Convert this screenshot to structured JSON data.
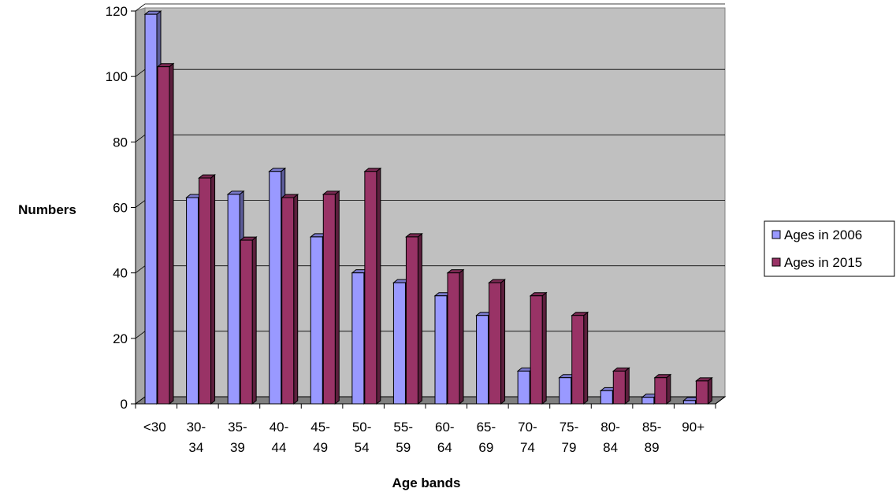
{
  "chart_data": {
    "type": "bar",
    "style": "3d-clustered-column",
    "categories": [
      [
        "<30"
      ],
      [
        "30-",
        "34"
      ],
      [
        "35-",
        "39"
      ],
      [
        "40-",
        "44"
      ],
      [
        "45-",
        "49"
      ],
      [
        "50-",
        "54"
      ],
      [
        "55-",
        "59"
      ],
      [
        "60-",
        "64"
      ],
      [
        "65-",
        "69"
      ],
      [
        "70-",
        "74"
      ],
      [
        "75-",
        "79"
      ],
      [
        "80-",
        "84"
      ],
      [
        "85-",
        "89"
      ],
      [
        "90+"
      ]
    ],
    "series": [
      {
        "name": "Ages in 2006",
        "color": "#9999ff",
        "values": [
          119,
          63,
          64,
          71,
          51,
          40,
          37,
          33,
          27,
          10,
          8,
          4,
          2,
          1
        ]
      },
      {
        "name": "Ages in 2015",
        "color": "#993366",
        "values": [
          103,
          69,
          50,
          63,
          64,
          71,
          51,
          40,
          37,
          33,
          27,
          10,
          8,
          7
        ]
      }
    ],
    "xlabel": "Age bands",
    "ylabel": "Numbers",
    "ylim": [
      0,
      120
    ],
    "yticks": [
      0,
      20,
      40,
      60,
      80,
      100,
      120
    ],
    "grid": true,
    "wall_color": "#c0c0c0",
    "floor_color": "#808080",
    "legend_position": "right"
  }
}
